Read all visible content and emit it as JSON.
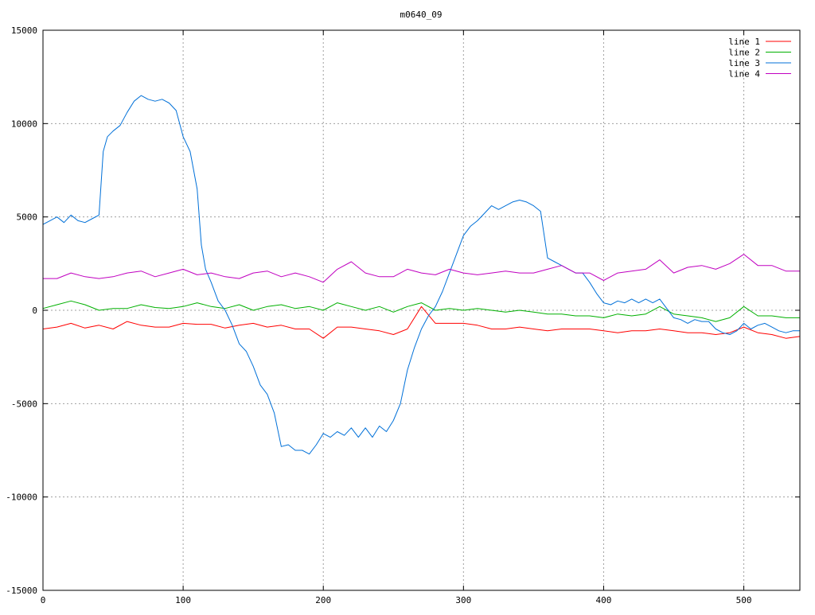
{
  "chart_data": {
    "type": "line",
    "title": "m0640_09",
    "xlabel": "",
    "ylabel": "",
    "xlim": [
      0,
      540
    ],
    "ylim": [
      -15000,
      15000
    ],
    "x_ticks": [
      0,
      100,
      200,
      300,
      400,
      500
    ],
    "y_ticks": [
      -15000,
      -10000,
      -5000,
      0,
      5000,
      10000,
      15000
    ],
    "grid": true,
    "legend_position": "top-right",
    "series": [
      {
        "name": "line 1",
        "color": "#ff0000",
        "x": [
          0,
          10,
          20,
          30,
          40,
          50,
          60,
          70,
          80,
          90,
          100,
          110,
          120,
          130,
          140,
          150,
          160,
          170,
          180,
          190,
          200,
          210,
          220,
          230,
          240,
          250,
          260,
          270,
          280,
          290,
          300,
          310,
          320,
          330,
          340,
          350,
          360,
          370,
          380,
          390,
          400,
          410,
          420,
          430,
          440,
          450,
          460,
          470,
          480,
          490,
          500,
          510,
          520,
          530,
          540
        ],
        "y": [
          -1000,
          -900,
          -700,
          -950,
          -800,
          -1000,
          -600,
          -800,
          -900,
          -900,
          -700,
          -750,
          -750,
          -950,
          -800,
          -700,
          -900,
          -800,
          -1000,
          -1000,
          -1500,
          -900,
          -900,
          -1000,
          -1100,
          -1300,
          -1000,
          200,
          -700,
          -700,
          -700,
          -800,
          -1000,
          -1000,
          -900,
          -1000,
          -1100,
          -1000,
          -1000,
          -1000,
          -1100,
          -1200,
          -1100,
          -1100,
          -1000,
          -1100,
          -1200,
          -1200,
          -1300,
          -1200,
          -900,
          -1200,
          -1300,
          -1500,
          -1400
        ]
      },
      {
        "name": "line 2",
        "color": "#00b000",
        "x": [
          0,
          10,
          20,
          30,
          40,
          50,
          60,
          70,
          80,
          90,
          100,
          110,
          120,
          130,
          140,
          150,
          160,
          170,
          180,
          190,
          200,
          210,
          220,
          230,
          240,
          250,
          260,
          270,
          280,
          290,
          300,
          310,
          320,
          330,
          340,
          350,
          360,
          370,
          380,
          390,
          400,
          410,
          420,
          430,
          440,
          450,
          460,
          470,
          480,
          490,
          500,
          510,
          520,
          530,
          540
        ],
        "y": [
          100,
          300,
          500,
          300,
          0,
          100,
          100,
          300,
          150,
          100,
          200,
          400,
          200,
          100,
          300,
          0,
          200,
          300,
          100,
          200,
          0,
          400,
          200,
          0,
          200,
          -100,
          200,
          400,
          0,
          100,
          0,
          100,
          0,
          -100,
          0,
          -100,
          -200,
          -200,
          -300,
          -300,
          -400,
          -200,
          -300,
          -200,
          200,
          -200,
          -300,
          -400,
          -600,
          -400,
          200,
          -300,
          -300,
          -400,
          -400
        ]
      },
      {
        "name": "line 3",
        "color": "#0070d8",
        "x": [
          0,
          5,
          10,
          15,
          20,
          25,
          30,
          35,
          40,
          43,
          46,
          50,
          55,
          60,
          65,
          70,
          75,
          80,
          85,
          90,
          95,
          100,
          105,
          110,
          113,
          116,
          120,
          125,
          130,
          135,
          140,
          145,
          150,
          155,
          160,
          165,
          170,
          175,
          180,
          185,
          190,
          195,
          200,
          205,
          210,
          215,
          220,
          225,
          230,
          235,
          240,
          245,
          250,
          255,
          260,
          265,
          270,
          275,
          280,
          285,
          290,
          295,
          300,
          305,
          310,
          315,
          320,
          325,
          330,
          335,
          340,
          345,
          350,
          355,
          360,
          365,
          370,
          375,
          380,
          385,
          390,
          395,
          400,
          405,
          410,
          415,
          420,
          425,
          430,
          435,
          440,
          445,
          450,
          455,
          460,
          465,
          470,
          475,
          480,
          485,
          490,
          495,
          500,
          505,
          510,
          515,
          520,
          525,
          530,
          535,
          540
        ],
        "y": [
          4600,
          4800,
          5000,
          4700,
          5100,
          4800,
          4700,
          4900,
          5100,
          8500,
          9300,
          9600,
          9900,
          10600,
          11200,
          11500,
          11300,
          11200,
          11300,
          11100,
          10700,
          9300,
          8500,
          6500,
          3500,
          2200,
          1500,
          500,
          0,
          -800,
          -1800,
          -2200,
          -3000,
          -4000,
          -4500,
          -5500,
          -7300,
          -7200,
          -7500,
          -7500,
          -7700,
          -7200,
          -6600,
          -6800,
          -6500,
          -6700,
          -6300,
          -6800,
          -6300,
          -6800,
          -6200,
          -6500,
          -5900,
          -5000,
          -3200,
          -2000,
          -1000,
          -300,
          200,
          1000,
          2000,
          3000,
          4000,
          4500,
          4800,
          5200,
          5600,
          5400,
          5600,
          5800,
          5900,
          5800,
          5600,
          5300,
          2800,
          2600,
          2400,
          2200,
          2000,
          2000,
          1500,
          900,
          400,
          300,
          500,
          400,
          600,
          400,
          600,
          400,
          600,
          100,
          -400,
          -500,
          -700,
          -500,
          -600,
          -600,
          -1000,
          -1200,
          -1300,
          -1100,
          -700,
          -1000,
          -800,
          -700,
          -900,
          -1100,
          -1200,
          -1100,
          -1100
        ]
      },
      {
        "name": "line 4",
        "color": "#c000c0",
        "x": [
          0,
          10,
          20,
          30,
          40,
          50,
          60,
          70,
          80,
          90,
          100,
          110,
          120,
          130,
          140,
          150,
          160,
          170,
          180,
          190,
          200,
          210,
          220,
          230,
          240,
          250,
          260,
          270,
          280,
          290,
          300,
          310,
          320,
          330,
          340,
          350,
          360,
          370,
          380,
          390,
          400,
          410,
          420,
          430,
          440,
          450,
          460,
          470,
          480,
          490,
          500,
          510,
          520,
          530,
          540
        ],
        "y": [
          1700,
          1700,
          2000,
          1800,
          1700,
          1800,
          2000,
          2100,
          1800,
          2000,
          2200,
          1900,
          2000,
          1800,
          1700,
          2000,
          2100,
          1800,
          2000,
          1800,
          1500,
          2200,
          2600,
          2000,
          1800,
          1800,
          2200,
          2000,
          1900,
          2200,
          2000,
          1900,
          2000,
          2100,
          2000,
          2000,
          2200,
          2400,
          2000,
          2000,
          1600,
          2000,
          2100,
          2200,
          2700,
          2000,
          2300,
          2400,
          2200,
          2500,
          3000,
          2400,
          2400,
          2100,
          2100
        ]
      }
    ]
  }
}
